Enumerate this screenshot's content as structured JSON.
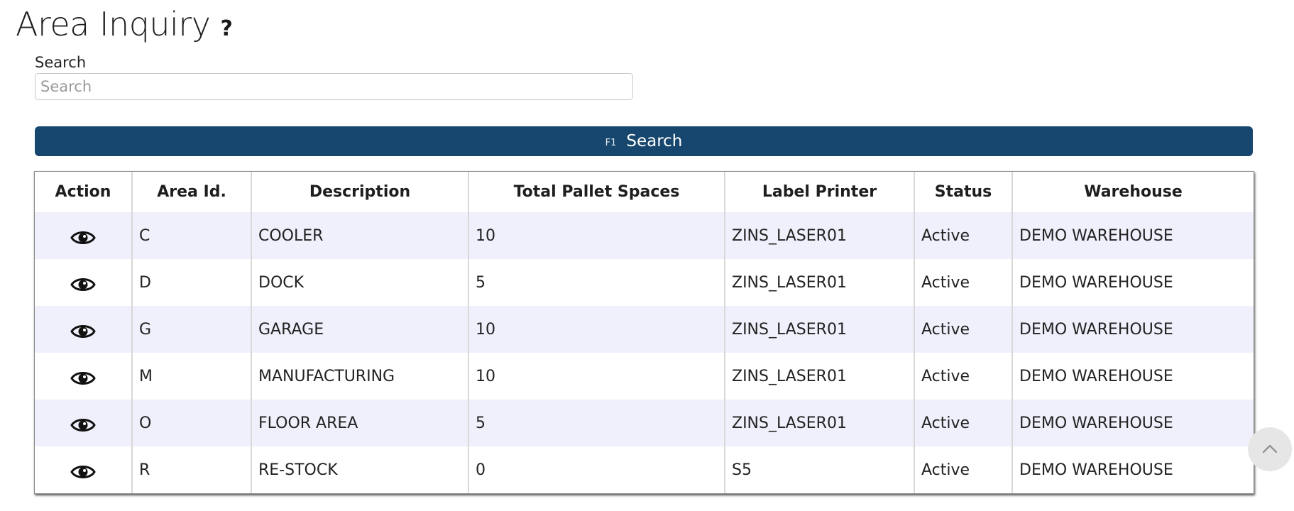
{
  "page": {
    "title": "Area Inquiry",
    "help_glyph": "?",
    "help_icon": "help-question-icon"
  },
  "search": {
    "label": "Search",
    "placeholder": "Search",
    "value": ""
  },
  "search_button": {
    "hotkey": "F1",
    "label": "Search",
    "color": "#17466e"
  },
  "table": {
    "columns": [
      "Action",
      "Area Id.",
      "Description",
      "Total Pallet Spaces",
      "Label Printer",
      "Status",
      "Warehouse"
    ],
    "row_action_icon": "eye-view-icon",
    "rows": [
      {
        "area_id": "C",
        "description": "COOLER",
        "total_pallet_spaces": "10",
        "label_printer": "ZINS_LASER01",
        "status": "Active",
        "warehouse": "DEMO WAREHOUSE"
      },
      {
        "area_id": "D",
        "description": "DOCK",
        "total_pallet_spaces": "5",
        "label_printer": "ZINS_LASER01",
        "status": "Active",
        "warehouse": "DEMO WAREHOUSE"
      },
      {
        "area_id": "G",
        "description": "GARAGE",
        "total_pallet_spaces": "10",
        "label_printer": "ZINS_LASER01",
        "status": "Active",
        "warehouse": "DEMO WAREHOUSE"
      },
      {
        "area_id": "M",
        "description": "MANUFACTURING",
        "total_pallet_spaces": "10",
        "label_printer": "ZINS_LASER01",
        "status": "Active",
        "warehouse": "DEMO WAREHOUSE"
      },
      {
        "area_id": "O",
        "description": "FLOOR AREA",
        "total_pallet_spaces": "5",
        "label_printer": "ZINS_LASER01",
        "status": "Active",
        "warehouse": "DEMO WAREHOUSE"
      },
      {
        "area_id": "R",
        "description": "RE-STOCK",
        "total_pallet_spaces": "0",
        "label_printer": "S5",
        "status": "Active",
        "warehouse": "DEMO WAREHOUSE"
      }
    ],
    "stripe_color": "#eff0fb"
  },
  "scroll_top": {
    "icon": "chevron-up-icon"
  }
}
